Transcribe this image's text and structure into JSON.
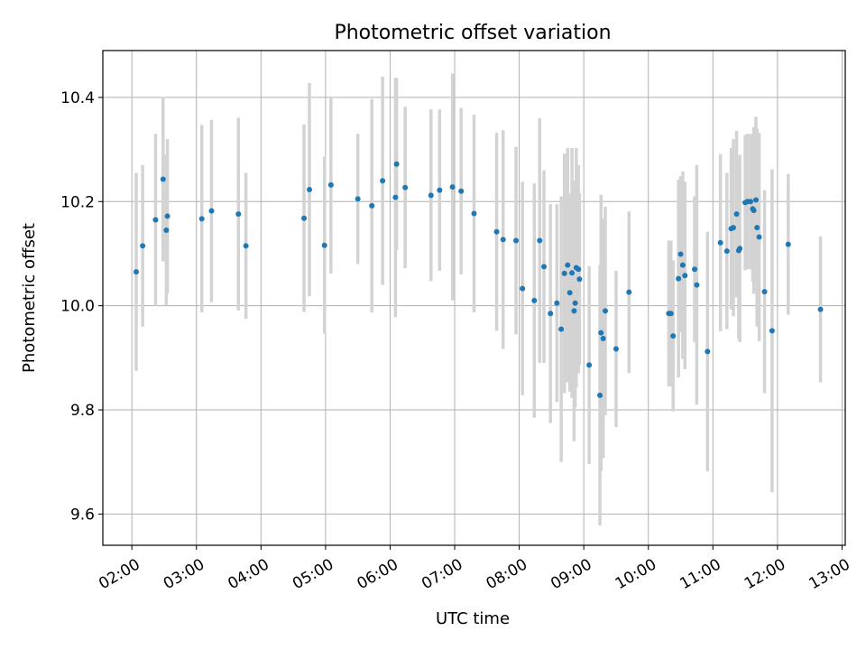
{
  "chart_data": {
    "type": "scatter",
    "title": "Photometric offset variation",
    "xlabel": "UTC time",
    "ylabel": "Photometric offset",
    "xlim": [
      "01:33",
      "13:03"
    ],
    "ylim": [
      9.54,
      10.49
    ],
    "grid": true,
    "x_ticks": [
      "02:00",
      "03:00",
      "04:00",
      "05:00",
      "06:00",
      "07:00",
      "08:00",
      "09:00",
      "10:00",
      "11:00",
      "12:00",
      "13:00"
    ],
    "y_ticks": [
      "9.6",
      "9.8",
      "10.0",
      "10.2",
      "10.4"
    ],
    "colors": {
      "points": "#1f77b4",
      "errorbars": "#d3d3d3",
      "grid": "#b0b0b0"
    },
    "series": [
      {
        "x": [
          "02:04",
          "02:10",
          "02:22",
          "02:29",
          "02:32",
          "02:33",
          "03:05",
          "03:14",
          "03:39",
          "03:46",
          "04:40",
          "04:45",
          "04:59",
          "05:05",
          "05:30",
          "05:43",
          "05:53",
          "06:05",
          "06:06",
          "06:14",
          "06:38",
          "06:46",
          "06:58",
          "07:06",
          "07:18",
          "07:39",
          "07:45",
          "07:57",
          "08:03",
          "08:14",
          "08:19",
          "08:23",
          "08:29",
          "08:35",
          "08:39",
          "08:42",
          "08:45",
          "08:47",
          "08:49",
          "08:51",
          "08:52",
          "08:53",
          "08:55",
          "08:56",
          "09:05",
          "09:15",
          "09:16",
          "09:18",
          "09:20",
          "09:30",
          "09:42",
          "10:19",
          "10:21",
          "10:23",
          "10:28",
          "10:30",
          "10:32",
          "10:34",
          "10:43",
          "10:45",
          "10:55",
          "11:07",
          "11:13",
          "11:17",
          "11:19",
          "11:22",
          "11:24",
          "11:25",
          "11:30",
          "11:32",
          "11:35",
          "11:37",
          "11:38",
          "11:40",
          "11:41",
          "11:43",
          "11:48",
          "11:55",
          "12:10",
          "12:40"
        ],
        "y": [
          10.065,
          10.115,
          10.165,
          10.243,
          10.145,
          10.172,
          10.167,
          10.182,
          10.176,
          10.115,
          10.168,
          10.223,
          10.116,
          10.232,
          10.205,
          10.192,
          10.24,
          10.208,
          10.272,
          10.227,
          10.212,
          10.222,
          10.228,
          10.22,
          10.177,
          10.142,
          10.127,
          10.125,
          10.033,
          10.01,
          10.125,
          10.075,
          9.985,
          10.005,
          9.955,
          10.062,
          10.078,
          10.025,
          10.063,
          9.99,
          10.005,
          10.073,
          10.07,
          10.051,
          9.886,
          9.828,
          9.948,
          9.937,
          9.99,
          9.917,
          10.026,
          9.985,
          9.985,
          9.942,
          10.052,
          10.099,
          10.078,
          10.058,
          10.07,
          10.04,
          9.912,
          10.121,
          10.105,
          10.148,
          10.15,
          10.176,
          10.106,
          10.11,
          10.198,
          10.2,
          10.2,
          10.186,
          10.183,
          10.203,
          10.15,
          10.132,
          10.027,
          9.952,
          10.118,
          9.993
        ],
        "err": [
          0.19,
          0.155,
          0.165,
          0.158,
          0.145,
          0.148,
          0.18,
          0.175,
          0.185,
          0.14,
          0.18,
          0.205,
          0.17,
          0.17,
          0.125,
          0.205,
          0.2,
          0.23,
          0.165,
          0.155,
          0.165,
          0.155,
          0.218,
          0.16,
          0.19,
          0.19,
          0.21,
          0.18,
          0.205,
          0.225,
          0.235,
          0.185,
          0.21,
          0.19,
          0.255,
          0.23,
          0.225,
          0.19,
          0.24,
          0.25,
          0.2,
          0.23,
          0.2,
          0.165,
          0.19,
          0.25,
          0.265,
          0.23,
          0.2,
          0.15,
          0.155,
          0.14,
          0.14,
          0.145,
          0.19,
          0.15,
          0.18,
          0.18,
          0.14,
          0.23,
          0.23,
          0.17,
          0.15,
          0.155,
          0.17,
          0.16,
          0.17,
          0.18,
          0.13,
          0.13,
          0.13,
          0.14,
          0.16,
          0.16,
          0.19,
          0.2,
          0.195,
          0.31,
          0.135,
          0.14
        ]
      }
    ]
  }
}
